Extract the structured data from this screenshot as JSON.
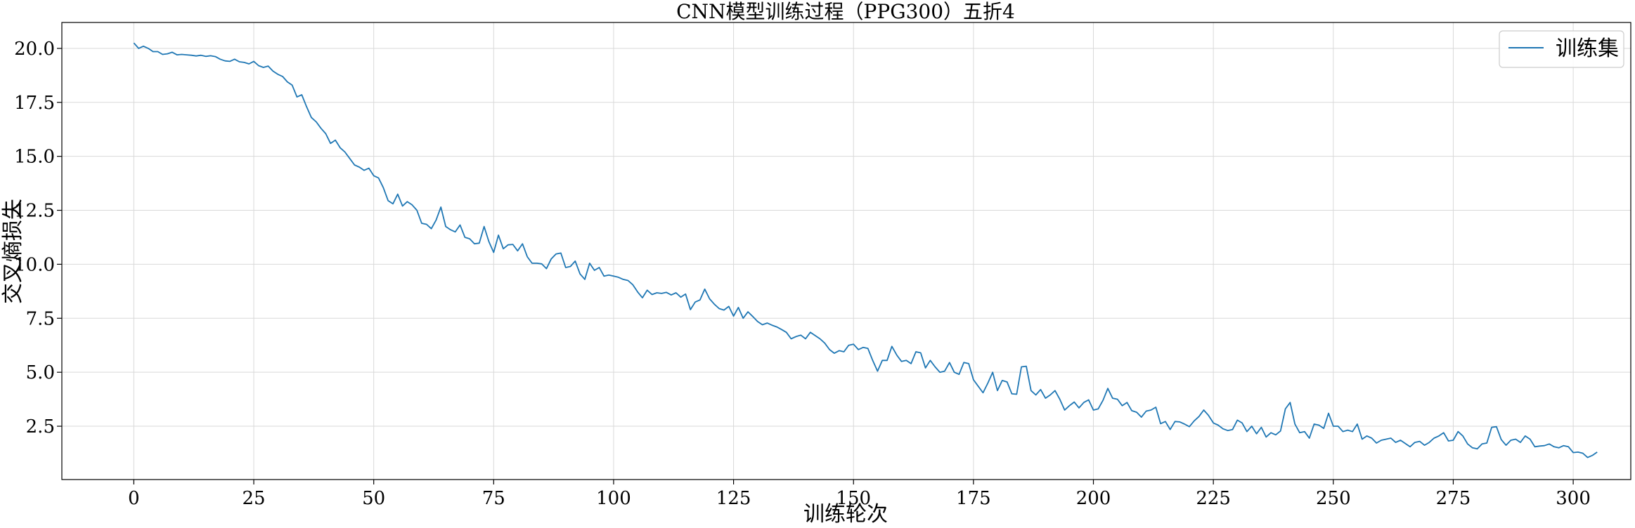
{
  "chart_data": {
    "type": "line",
    "title": "CNN模型训练过程（PPG300）五折4",
    "xlabel": "训练轮次",
    "ylabel": "交叉熵损失",
    "xlim": [
      -15,
      312
    ],
    "ylim": [
      0.03,
      21.2
    ],
    "xticks": [
      0,
      25,
      50,
      75,
      100,
      125,
      150,
      175,
      200,
      225,
      250,
      275,
      300
    ],
    "yticks": [
      2.5,
      5.0,
      7.5,
      10.0,
      12.5,
      15.0,
      17.5,
      20.0
    ],
    "grid": true,
    "legend_position": "top-right",
    "colors": {
      "series": "#1f77b4",
      "grid": "#d9d9d9",
      "axis": "#000000"
    },
    "series": [
      {
        "name": "训练集",
        "x_start": 0,
        "x_step": 1,
        "values": [
          20.25,
          20.0,
          20.1,
          20.0,
          19.85,
          19.85,
          19.72,
          19.75,
          19.82,
          19.7,
          19.72,
          19.7,
          19.68,
          19.65,
          19.68,
          19.63,
          19.66,
          19.62,
          19.5,
          19.42,
          19.4,
          19.5,
          19.38,
          19.35,
          19.28,
          19.4,
          19.2,
          19.12,
          19.18,
          18.95,
          18.8,
          18.7,
          18.45,
          18.3,
          17.75,
          17.85,
          17.3,
          16.8,
          16.6,
          16.3,
          16.05,
          15.6,
          15.75,
          15.4,
          15.2,
          14.9,
          14.6,
          14.5,
          14.35,
          14.45,
          14.1,
          14.0,
          13.55,
          12.95,
          12.8,
          13.25,
          12.7,
          12.9,
          12.75,
          12.5,
          11.9,
          11.85,
          11.65,
          12.05,
          12.65,
          11.75,
          11.6,
          11.5,
          11.82,
          11.25,
          11.18,
          10.95,
          10.98,
          11.75,
          11.05,
          10.55,
          11.35,
          10.72,
          10.9,
          10.92,
          10.62,
          10.95,
          10.35,
          10.05,
          10.05,
          10.02,
          9.8,
          10.25,
          10.48,
          10.52,
          9.85,
          9.9,
          10.15,
          9.55,
          9.3,
          10.05,
          9.72,
          9.85,
          9.45,
          9.5,
          9.45,
          9.4,
          9.3,
          9.25,
          9.05,
          8.72,
          8.45,
          8.8,
          8.6,
          8.68,
          8.65,
          8.7,
          8.58,
          8.68,
          8.48,
          8.62,
          7.9,
          8.25,
          8.35,
          8.85,
          8.4,
          8.15,
          7.95,
          7.88,
          8.05,
          7.6,
          8.0,
          7.5,
          7.8,
          7.58,
          7.35,
          7.2,
          7.28,
          7.18,
          7.1,
          6.98,
          6.85,
          6.55,
          6.65,
          6.72,
          6.55,
          6.85,
          6.7,
          6.55,
          6.35,
          6.05,
          5.88,
          6.0,
          5.95,
          6.25,
          6.3,
          6.05,
          6.15,
          6.1,
          5.55,
          5.05,
          5.55,
          5.55,
          6.2,
          5.8,
          5.5,
          5.55,
          5.4,
          5.95,
          5.9,
          5.2,
          5.55,
          5.25,
          5.0,
          5.05,
          5.45,
          5.0,
          4.9,
          5.45,
          5.4,
          4.65,
          4.35,
          4.05,
          4.5,
          5.0,
          4.15,
          4.62,
          4.55,
          4.0,
          3.98,
          5.25,
          5.28,
          4.15,
          3.95,
          4.2,
          3.8,
          3.95,
          4.15,
          3.75,
          3.25,
          3.45,
          3.62,
          3.35,
          3.6,
          3.72,
          3.25,
          3.3,
          3.7,
          4.25,
          3.8,
          3.75,
          3.45,
          3.6,
          3.22,
          3.15,
          2.92,
          3.2,
          3.25,
          3.38,
          2.62,
          2.72,
          2.35,
          2.72,
          2.7,
          2.6,
          2.48,
          2.75,
          2.95,
          3.25,
          3.0,
          2.65,
          2.55,
          2.38,
          2.3,
          2.35,
          2.78,
          2.65,
          2.25,
          2.5,
          2.15,
          2.45,
          2.0,
          2.2,
          2.1,
          2.28,
          3.3,
          3.6,
          2.6,
          2.2,
          2.25,
          1.95,
          2.6,
          2.55,
          2.4,
          3.1,
          2.5,
          2.5,
          2.25,
          2.32,
          2.25,
          2.6,
          1.9,
          2.05,
          1.95,
          1.72,
          1.85,
          1.9,
          1.95,
          1.75,
          1.85,
          1.7,
          1.55,
          1.75,
          1.8,
          1.62,
          1.75,
          1.95,
          2.05,
          2.2,
          1.82,
          1.85,
          2.25,
          2.05,
          1.68,
          1.5,
          1.45,
          1.68,
          1.72,
          2.45,
          2.48,
          1.88,
          1.62,
          1.85,
          1.9,
          1.75,
          2.05,
          1.9,
          1.55,
          1.58,
          1.6,
          1.68,
          1.55,
          1.5,
          1.6,
          1.55,
          1.28,
          1.3,
          1.25,
          1.05,
          1.15,
          1.3
        ]
      }
    ]
  }
}
